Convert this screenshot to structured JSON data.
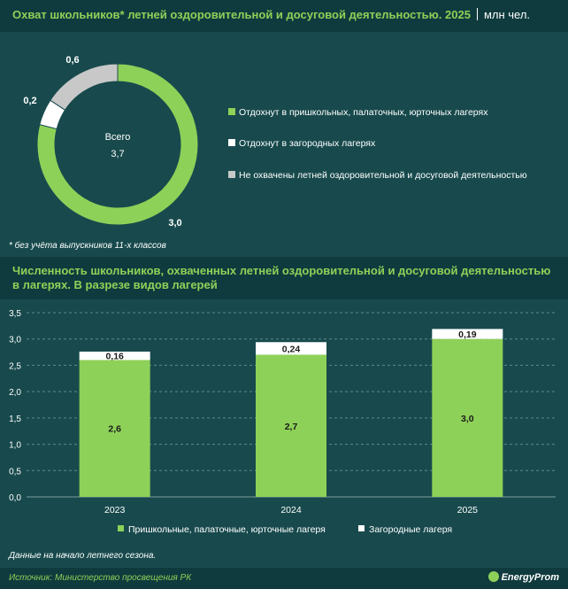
{
  "colors": {
    "green": "#8ed158",
    "white": "#ffffff",
    "gray": "#c8c8c8",
    "background": "#184a4d",
    "header": "#0f3b3e"
  },
  "section1": {
    "title": "Охват школьников* летней оздоровительной и досуговой деятельностью. 2025",
    "unit": "млн чел.",
    "footnote": "* без учёта выпускников 11-х классов"
  },
  "section2": {
    "title": "Численность школьников, охваченных летней оздоровительной и досуговой деятельностью в лагерях. В разрезе видов лагерей",
    "note": "Данные на начало летнего сезона."
  },
  "footer": {
    "source": "Источник: Министерство просвещения РК",
    "logo": "EnergyProm"
  },
  "chart_data": [
    {
      "type": "pie",
      "variant": "donut",
      "center_label": "Всего",
      "center_value": "3,7",
      "slices": [
        {
          "label": "Отдохнут в пришкольных, палаточных, юрточных лагерях",
          "value": 3.0,
          "display": "3,0",
          "color": "#8ed158"
        },
        {
          "label": "Отдохнут в загородных лагерях",
          "value": 0.2,
          "display": "0,2",
          "color": "#ffffff"
        },
        {
          "label": "Не охвачены летней оздоровительной и досуговой деятельностью",
          "value": 0.6,
          "display": "0,6",
          "color": "#c8c8c8"
        }
      ],
      "legend_position": "right"
    },
    {
      "type": "bar",
      "stacked": true,
      "categories": [
        "2023",
        "2024",
        "2025"
      ],
      "series": [
        {
          "name": "Пришкольные, палаточные, юрточные лагеря",
          "values": [
            2.6,
            2.7,
            3.0
          ],
          "labels": [
            "2,6",
            "2,7",
            "3,0"
          ],
          "color": "#8ed158"
        },
        {
          "name": "Загородные лагеря",
          "values": [
            0.16,
            0.24,
            0.19
          ],
          "labels": [
            "0,16",
            "0,24",
            "0,19"
          ],
          "color": "#ffffff"
        }
      ],
      "y_ticks": [
        "0,0",
        "0,5",
        "1,0",
        "1,5",
        "2,0",
        "2,5",
        "3,0",
        "3,5"
      ],
      "ylim": [
        0,
        3.5
      ],
      "grid": true,
      "legend_position": "bottom"
    }
  ]
}
